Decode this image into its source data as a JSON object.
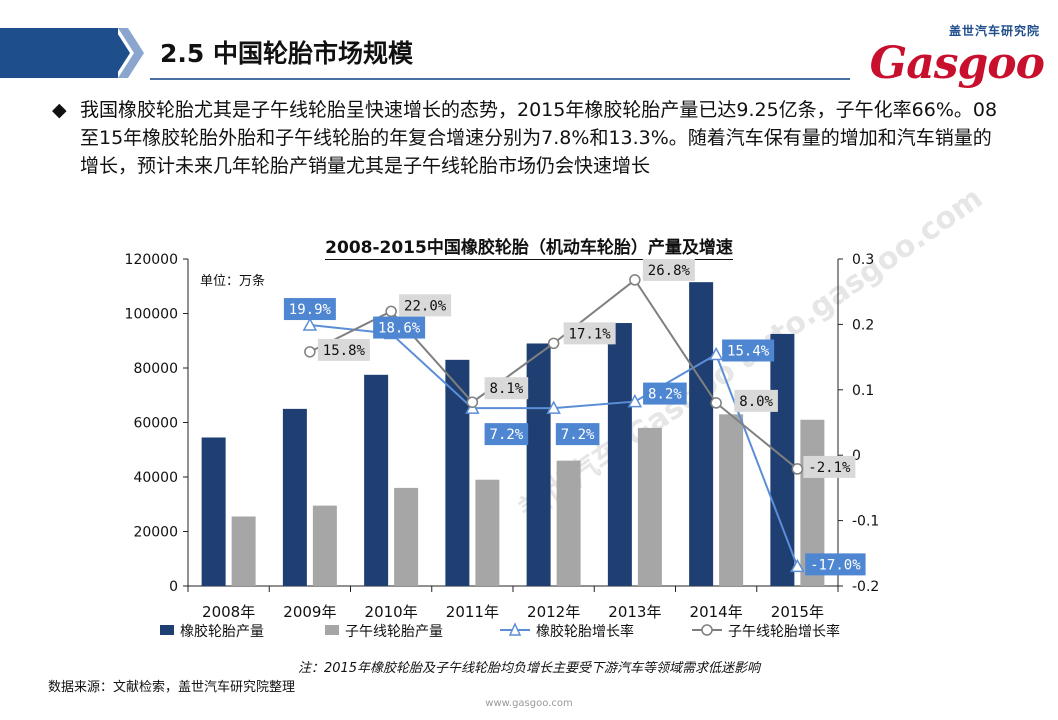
{
  "header": {
    "title": "2.5 中国轮胎市场规模",
    "logo_cn": "盖世汽车研究院",
    "logo_en": "Gasgoo"
  },
  "bullet": {
    "text": "我国橡胶轮胎尤其是子午线轮胎呈快速增长的态势，2015年橡胶轮胎产量已达9.25亿条，子午化率66%。08至15年橡胶轮胎外胎和子午线轮胎的年复合增速分别为7.8%和13.3%。随着汽车保有量的增加和汽车销量的增长，预计未来几年轮胎产销量尤其是子午线轮胎市场仍会快速增长"
  },
  "chart_data": {
    "type": "bar",
    "title": "2008-2015中国橡胶轮胎（机动车轮胎）产量及增速",
    "unit_label": "单位：万条",
    "categories": [
      "2008年",
      "2009年",
      "2010年",
      "2011年",
      "2012年",
      "2013年",
      "2014年",
      "2015年"
    ],
    "ylim": [
      0,
      120000
    ],
    "yticks": [
      "0",
      "20000",
      "40000",
      "60000",
      "80000",
      "100000",
      "120000"
    ],
    "y2lim": [
      -0.2,
      0.3
    ],
    "y2ticks": [
      "-0.2",
      "-0.1",
      "0",
      "0.1",
      "0.2",
      "0.3"
    ],
    "series": [
      {
        "name": "橡胶轮胎产量",
        "kind": "bar",
        "axis": "left",
        "color": "#1f3f73",
        "values": [
          54500,
          65000,
          77500,
          83000,
          89000,
          96500,
          111500,
          92500
        ]
      },
      {
        "name": "子午线轮胎产量",
        "kind": "bar",
        "axis": "left",
        "color": "#a6a6a6",
        "values": [
          25500,
          29500,
          36000,
          39000,
          46000,
          58000,
          63000,
          61000
        ]
      },
      {
        "name": "橡胶轮胎增长率",
        "kind": "line",
        "axis": "right",
        "color": "#5b8ed6",
        "marker": "triangle",
        "values": [
          null,
          0.199,
          0.186,
          0.072,
          0.072,
          0.082,
          0.154,
          -0.17
        ],
        "labels": [
          "",
          "19.9%",
          "18.6%",
          "7.2%",
          "7.2%",
          "8.2%",
          "15.4%",
          "-17.0%"
        ]
      },
      {
        "name": "子午线轮胎增长率",
        "kind": "line",
        "axis": "right",
        "color": "#7f7f7f",
        "marker": "circle",
        "values": [
          null,
          0.158,
          0.22,
          0.081,
          0.171,
          0.268,
          0.08,
          -0.021
        ],
        "labels": [
          "",
          "15.8%",
          "22.0%",
          "8.1%",
          "17.1%",
          "26.8%",
          "8.0%",
          "-2.1%"
        ]
      }
    ],
    "legend_position": "bottom",
    "grid": false
  },
  "note": "注：2015年橡胶轮胎及子午线轮胎均负增长主要受下游汽车等领域需求低迷影响",
  "source": "数据来源：文献检索，盖世汽车研究院整理",
  "footer": "www.gasgoo.com",
  "watermark": "盖世汽车 Gasgoo auto.gasgoo.com"
}
